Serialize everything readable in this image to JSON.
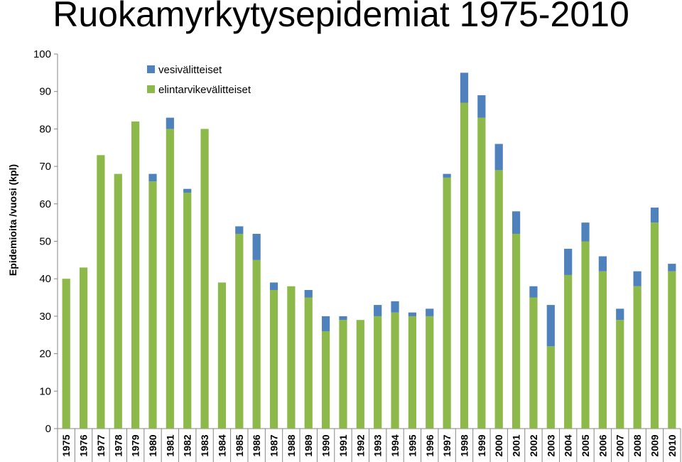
{
  "chart_data": {
    "type": "bar",
    "stacked": true,
    "title": "Ruokamyrkytysepidemiat 1975-2010",
    "xlabel": "",
    "ylabel": "Epidemioita /vuosi (kpl)",
    "ylim": [
      0,
      100
    ],
    "yticks": [
      0,
      10,
      20,
      30,
      40,
      50,
      60,
      70,
      80,
      90,
      100
    ],
    "grid": false,
    "legend_position": "top-left",
    "categories": [
      "1975",
      "1976",
      "1977",
      "1978",
      "1979",
      "1980",
      "1981",
      "1982",
      "1983",
      "1984",
      "1985",
      "1986",
      "1987",
      "1988",
      "1989",
      "1990",
      "1991",
      "1992",
      "1993",
      "1994",
      "1995",
      "1996",
      "1997",
      "1998",
      "1999",
      "2000",
      "2001",
      "2002",
      "2003",
      "2004",
      "2005",
      "2006",
      "2007",
      "2008",
      "2009",
      "2010"
    ],
    "series": [
      {
        "name": "elintarvikevälitteiset",
        "color": "#8db84a",
        "values": [
          40,
          43,
          73,
          68,
          82,
          66,
          80,
          63,
          80,
          39,
          52,
          45,
          37,
          38,
          35,
          26,
          29,
          29,
          30,
          31,
          30,
          30,
          67,
          87,
          83,
          69,
          52,
          35,
          22,
          41,
          50,
          42,
          29,
          38,
          55,
          42
        ]
      },
      {
        "name": "vesivälitteiset",
        "color": "#4f81bd",
        "values": [
          0,
          0,
          0,
          0,
          0,
          2,
          3,
          1,
          0,
          0,
          2,
          7,
          2,
          0,
          2,
          4,
          1,
          0,
          3,
          3,
          1,
          2,
          1,
          8,
          6,
          7,
          6,
          3,
          11,
          7,
          5,
          4,
          3,
          4,
          4,
          2
        ]
      }
    ],
    "legend": [
      "vesivälitteiset",
      "elintarvikevälitteiset"
    ]
  }
}
